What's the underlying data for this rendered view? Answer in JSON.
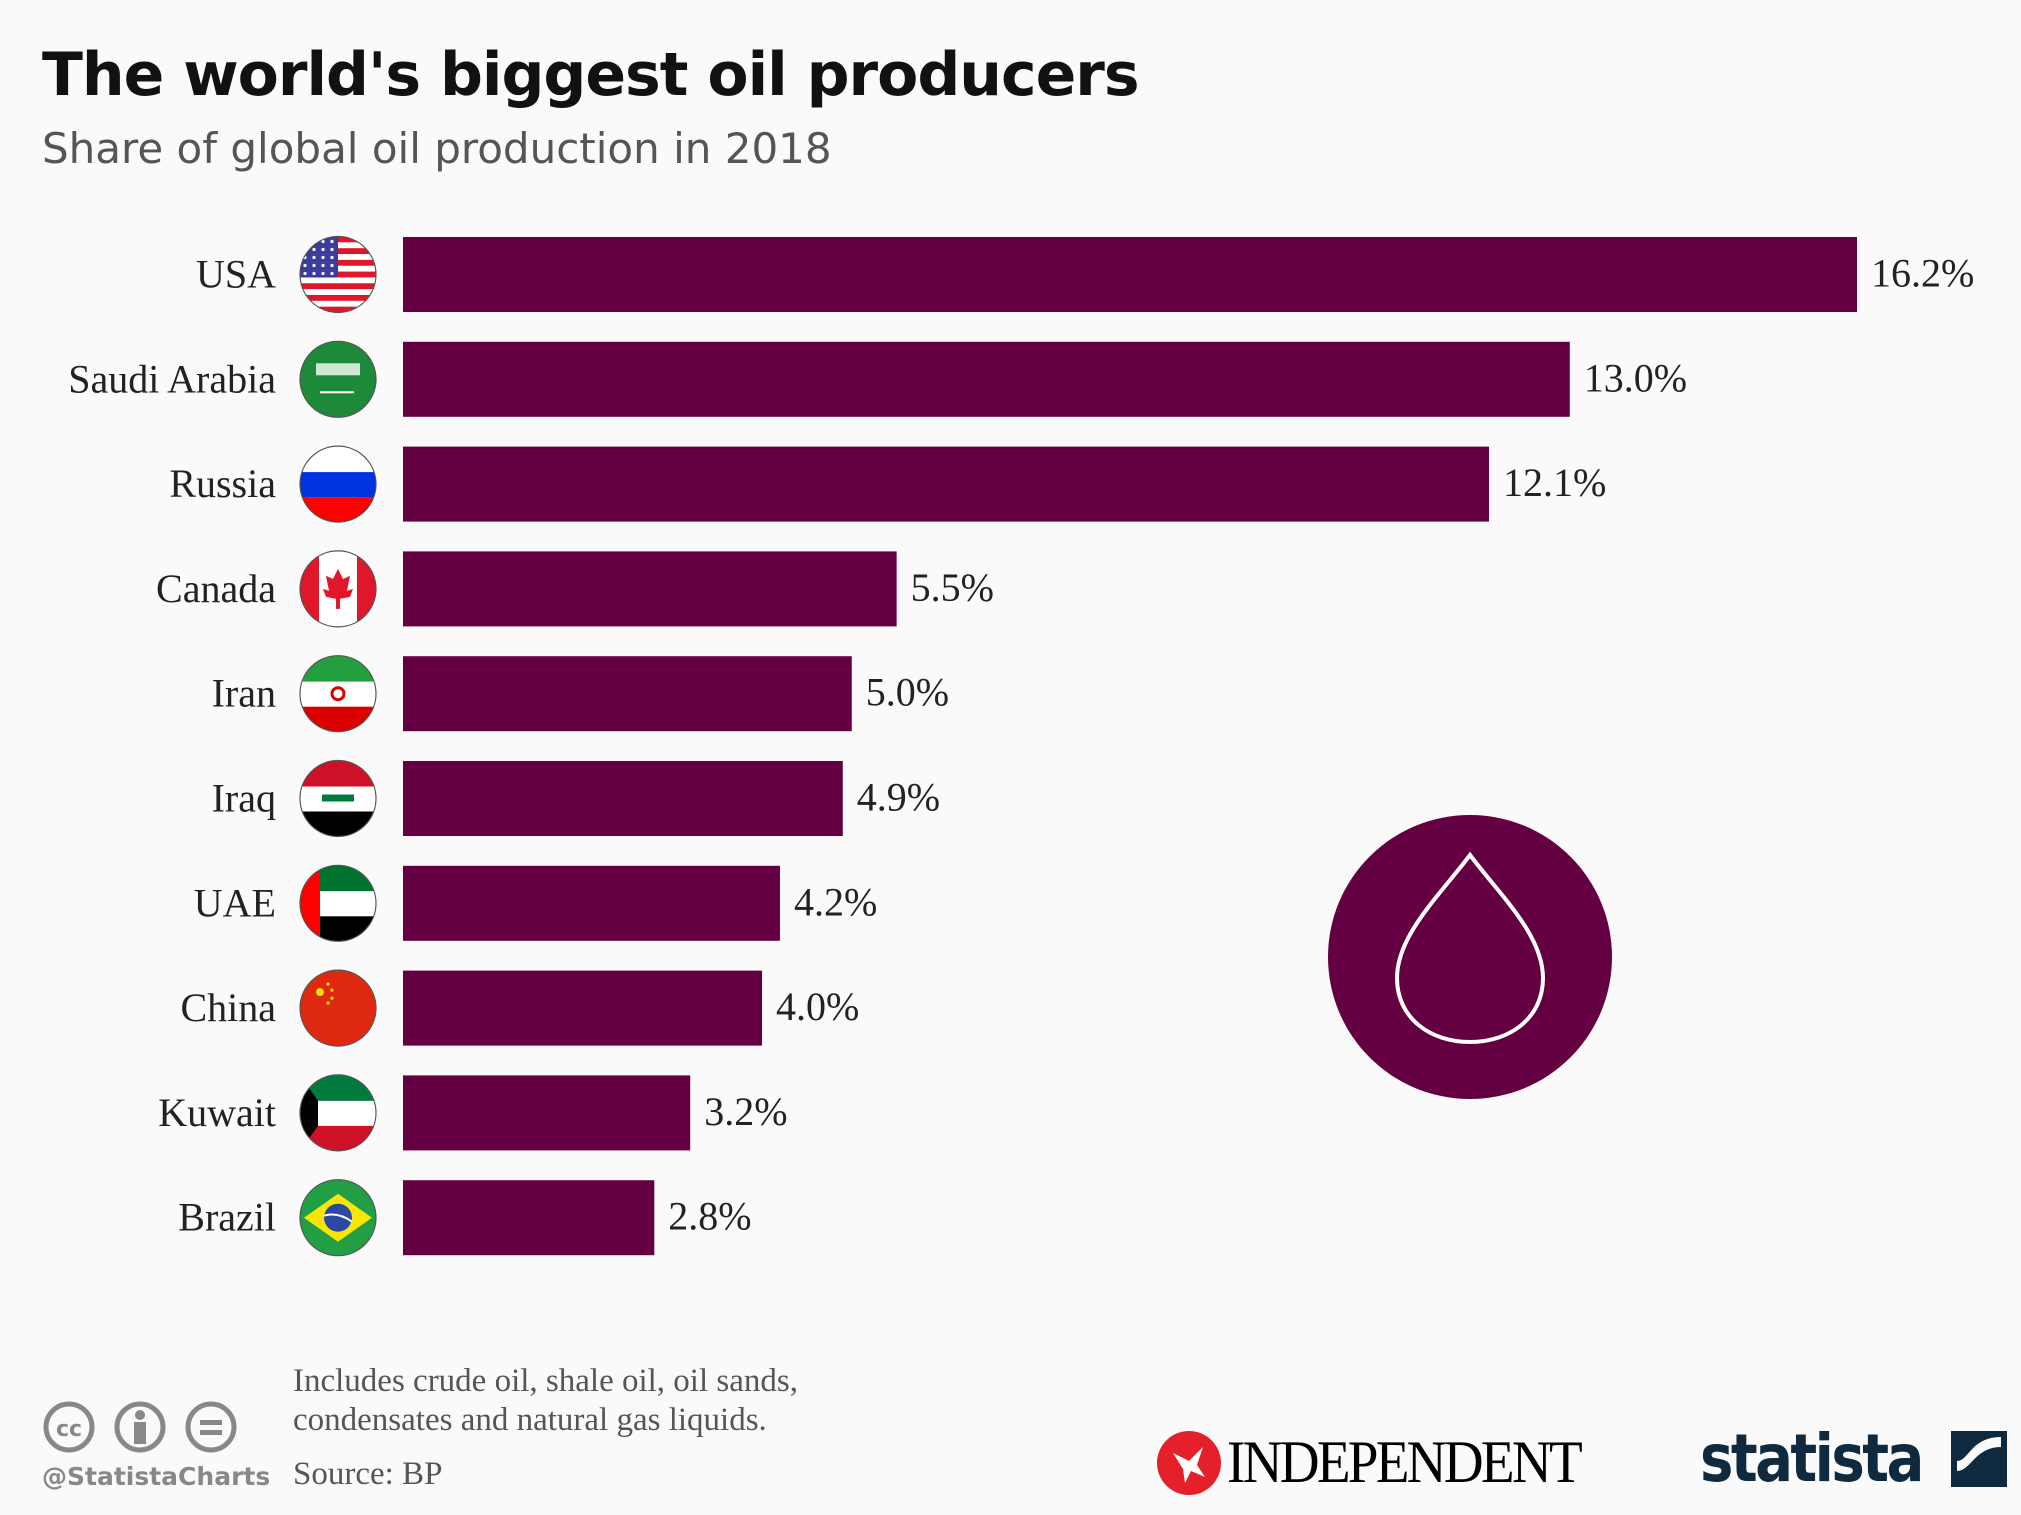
{
  "chart_data": {
    "type": "bar",
    "orientation": "horizontal",
    "title": "The world's biggest oil producers",
    "subtitle": "Share of global oil production in 2018",
    "categories": [
      "USA",
      "Saudi Arabia",
      "Russia",
      "Canada",
      "Iran",
      "Iraq",
      "UAE",
      "China",
      "Kuwait",
      "Brazil"
    ],
    "values": [
      16.2,
      13.0,
      12.1,
      5.5,
      5.0,
      4.9,
      4.2,
      4.0,
      3.2,
      2.8
    ],
    "value_labels": [
      "16.2%",
      "13.0%",
      "12.1%",
      "5.5%",
      "5.0%",
      "4.9%",
      "4.2%",
      "4.0%",
      "3.2%",
      "2.8%"
    ],
    "unit": "%",
    "xlim": [
      0,
      16.2
    ],
    "grid": false,
    "bar_color": "#640042",
    "flags": [
      "usa-flag",
      "saudi-arabia-flag",
      "russia-flag",
      "canada-flag",
      "iran-flag",
      "iraq-flag",
      "uae-flag",
      "china-flag",
      "kuwait-flag",
      "brazil-flag"
    ],
    "decoration_icon": "oil-drop-icon"
  },
  "footer": {
    "note": [
      "Includes crude oil, shale oil, oil sands,",
      "condensates and natural gas liquids."
    ],
    "source": "Source: BP",
    "handle": "@StatistaCharts",
    "license_icons": [
      "cc-icon",
      "attribution-icon",
      "no-derivatives-icon"
    ],
    "logos": {
      "independent": "INDEPENDENT",
      "statista": "statista"
    }
  }
}
